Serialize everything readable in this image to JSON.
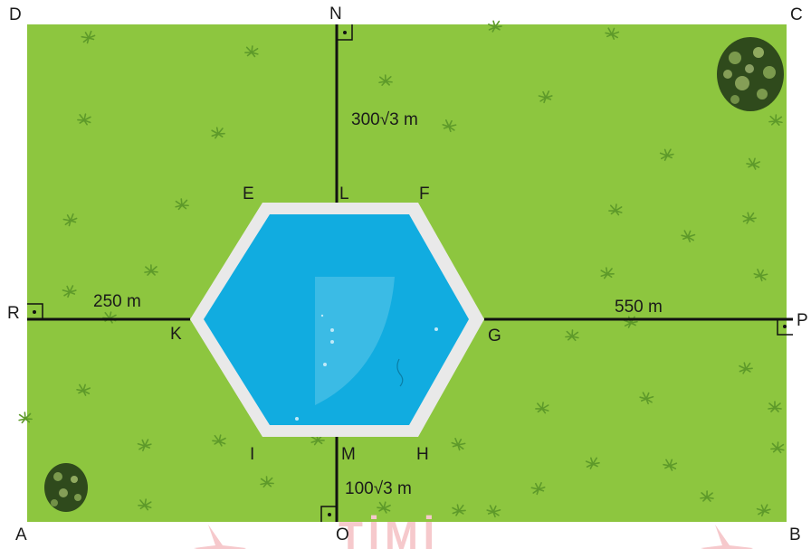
{
  "colors": {
    "grass": "#8dc63f",
    "grass_tuft": "#5e9a2a",
    "pool_water": "#11ace0",
    "pool_edge": "#e9e9e9",
    "line": "#111111",
    "bush_dark": "#2f4a1c",
    "bush_light": "#8fae5a",
    "watermark": "#f6c9cc"
  },
  "labels": {
    "corner_a": "A",
    "corner_b": "B",
    "corner_c": "C",
    "corner_d": "D",
    "point_n": "N",
    "point_o": "O",
    "point_p": "P",
    "point_r": "R",
    "vertex_e": "E",
    "vertex_f": "F",
    "vertex_g": "G",
    "vertex_h": "H",
    "vertex_i": "I",
    "vertex_k": "K",
    "point_l": "L",
    "point_m": "M"
  },
  "measurements": {
    "ln": "300√3 m",
    "mo": "100√3 m",
    "rk": "250 m",
    "gp": "550 m"
  },
  "watermark": "TİMİ"
}
